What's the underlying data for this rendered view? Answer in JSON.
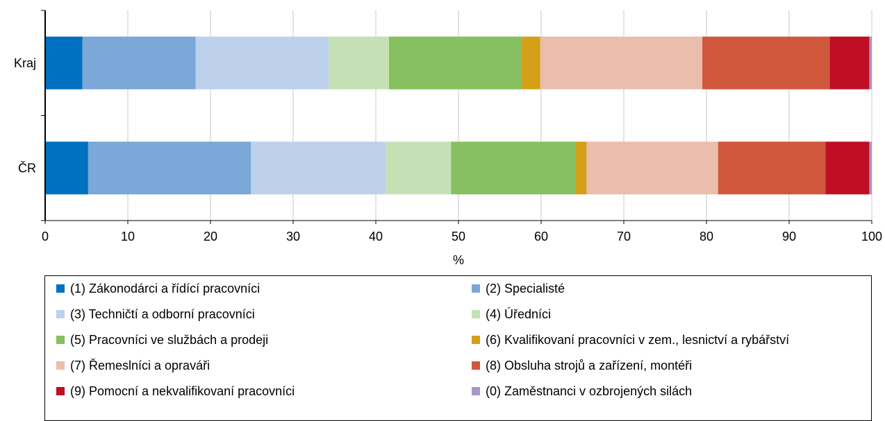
{
  "chart_data": {
    "type": "bar",
    "orientation": "horizontal",
    "stacked": true,
    "categories": [
      "Kraj",
      "ČR"
    ],
    "xlabel": "%",
    "ylabel": "",
    "xlim": [
      0,
      100
    ],
    "xticks": [
      "0",
      "10",
      "20",
      "30",
      "40",
      "50",
      "60",
      "70",
      "80",
      "90",
      "100"
    ],
    "grid": "vertical",
    "legend_position": "bottom",
    "series": [
      {
        "name": "(1) Zákonodárci a řídící pracovníci",
        "color": "#0070C0",
        "values": [
          4.5,
          5.2
        ]
      },
      {
        "name": "(2) Specialisté",
        "color": "#7BA7D9",
        "values": [
          13.7,
          19.7
        ]
      },
      {
        "name": "(3) Techničtí a odborní pracovníci",
        "color": "#BDD0EC",
        "values": [
          16.1,
          16.3
        ]
      },
      {
        "name": "(4) Úředníci",
        "color": "#C5E0B4",
        "values": [
          7.3,
          7.9
        ]
      },
      {
        "name": "(5) Pracovníci ve službách a prodeji",
        "color": "#86C060",
        "values": [
          16.0,
          15.1
        ]
      },
      {
        "name": "(6) Kvalifikovaní pracovníci v zem., lesnictví a rybářství",
        "color": "#D4A017",
        "values": [
          2.3,
          1.3
        ]
      },
      {
        "name": "(7) Řemeslníci a opraváři",
        "color": "#EBBDAD",
        "values": [
          19.6,
          15.9
        ]
      },
      {
        "name": "(8) Obsluha strojů a zařízení, montéři",
        "color": "#D0573B",
        "values": [
          15.4,
          13.0
        ]
      },
      {
        "name": "(9) Pomocní a nekvalifikovaní pracovníci",
        "color": "#C00E25",
        "values": [
          4.8,
          5.3
        ]
      },
      {
        "name": "(0) Zaměstnanci v ozbrojených silách",
        "color": "#A898C6",
        "values": [
          0.3,
          0.3
        ]
      }
    ]
  }
}
